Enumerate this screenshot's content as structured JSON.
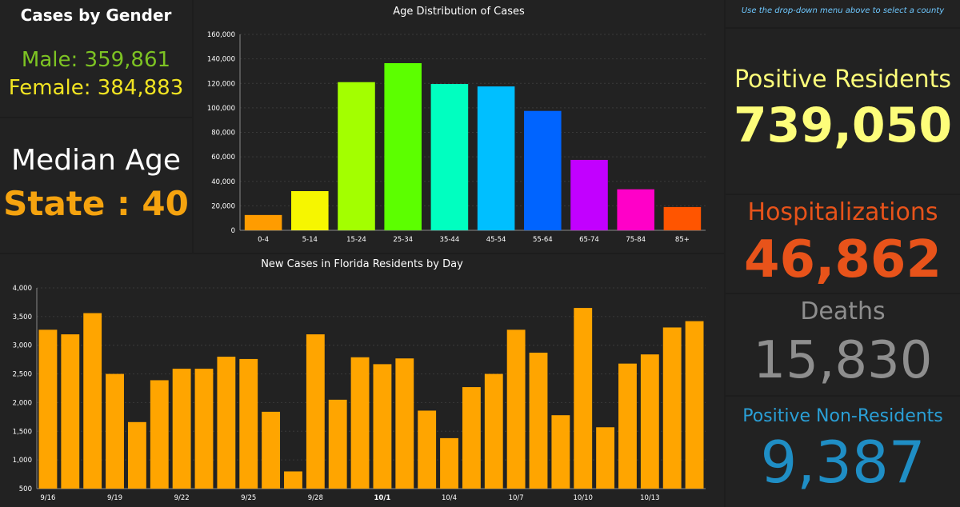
{
  "gender": {
    "title": "Cases by Gender",
    "male": "Male: 359,861",
    "female": "Female: 384,883",
    "male_color": "#7dc323",
    "female_color": "#f2e422"
  },
  "median": {
    "label": "Median Age",
    "value": "State : 40",
    "value_color": "#f5a30f"
  },
  "county_hint": "Use the drop-down menu above to select a county",
  "stats": {
    "positive_label": "Positive Residents",
    "positive_value": "739,050",
    "positive_color": "#fdfd7a",
    "hosp_label": "Hospitalizations",
    "hosp_value": "46,862",
    "hosp_color": "#e8531a",
    "deaths_label": "Deaths",
    "deaths_value": "15,830",
    "deaths_color": "#8e8e8e",
    "nonres_label": "Positive Non-Residents",
    "nonres_value": "9,387",
    "nonres_label_color": "#2a9fd6",
    "nonres_value_color": "#1f8ec5"
  },
  "chart_data": [
    {
      "type": "bar",
      "title": "Age Distribution of Cases",
      "categories": [
        "0-4",
        "5-14",
        "15-24",
        "25-34",
        "35-44",
        "45-54",
        "55-64",
        "65-74",
        "75-84",
        "85+"
      ],
      "values": [
        12500,
        32000,
        121000,
        136500,
        119500,
        117500,
        97500,
        57500,
        33500,
        19000
      ],
      "colors": [
        "#ff9c00",
        "#f6f600",
        "#a3ff00",
        "#5cff00",
        "#00ffc0",
        "#00bfff",
        "#0064ff",
        "#c200ff",
        "#ff00c8",
        "#ff5500"
      ],
      "yticks": [
        "0",
        "20,000",
        "40,000",
        "60,000",
        "80,000",
        "100,000",
        "120,000",
        "140,000",
        "160,000"
      ],
      "ylim": [
        0,
        160000
      ],
      "grid": true
    },
    {
      "type": "bar",
      "title": "New Cases in Florida Residents by Day",
      "categories": [
        "9/16",
        "9/17",
        "9/18",
        "9/19",
        "9/20",
        "9/21",
        "9/22",
        "9/23",
        "9/24",
        "9/25",
        "9/26",
        "9/27",
        "9/28",
        "9/29",
        "9/30",
        "10/1",
        "10/2",
        "10/3",
        "10/4",
        "10/5",
        "10/6",
        "10/7",
        "10/8",
        "10/9",
        "10/10",
        "10/11",
        "10/12",
        "10/13",
        "10/14",
        "10/15"
      ],
      "values": [
        3270,
        3190,
        3560,
        2500,
        1660,
        2390,
        2590,
        2590,
        2800,
        2760,
        1840,
        800,
        3190,
        2050,
        2790,
        2670,
        2770,
        1860,
        1380,
        2270,
        2500,
        3270,
        2870,
        1780,
        3650,
        1570,
        2680,
        2840,
        3310,
        3420
      ],
      "xtick_labels": [
        "9/16",
        "9/19",
        "9/22",
        "9/25",
        "9/28",
        "10/1",
        "10/4",
        "10/7",
        "10/10",
        "10/13"
      ],
      "yticks": [
        "500",
        "1,000",
        "1,500",
        "2,000",
        "2,500",
        "3,000",
        "3,500",
        "4,000"
      ],
      "ylim": [
        500,
        4000
      ],
      "bar_color": "#ffa500",
      "grid": true
    }
  ]
}
